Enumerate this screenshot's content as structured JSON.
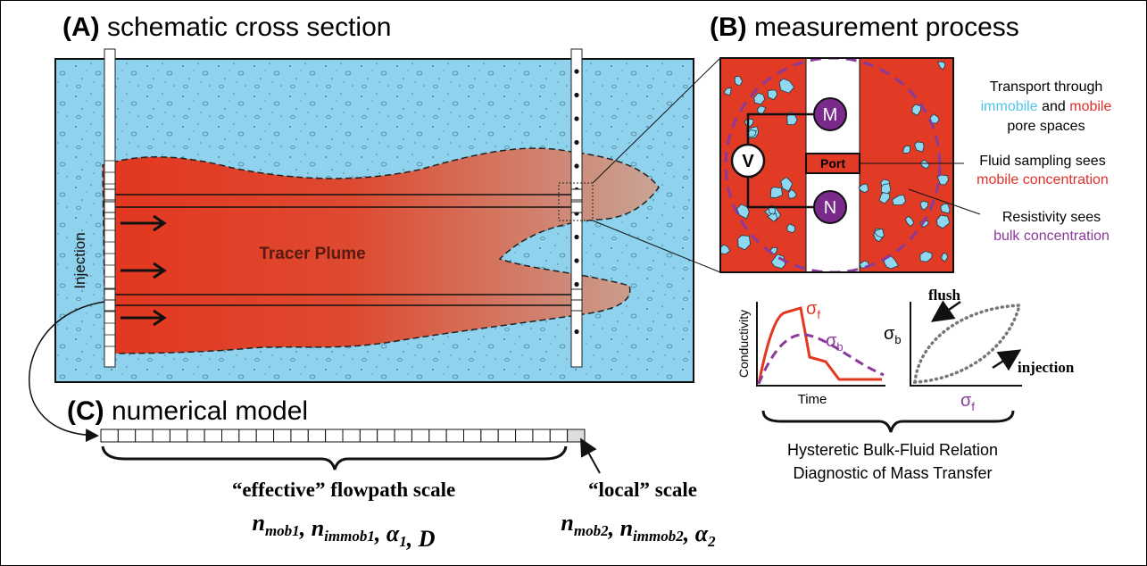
{
  "panel_a": {
    "label": "(A)",
    "title": "schematic cross section",
    "injection": "Injection",
    "plume": "Tracer Plume"
  },
  "panel_b": {
    "label": "(B)",
    "title": "measurement process",
    "nodes": {
      "v": "V",
      "m": "M",
      "n": "N",
      "port": "Port"
    },
    "transport": {
      "line1": "Transport through",
      "immobile": "immobile",
      "and": "and",
      "mobile": "mobile",
      "line3": "pore spaces"
    },
    "sampling": {
      "line1": "Fluid sampling sees",
      "line2": "mobile concentration"
    },
    "resistivity": {
      "line1": "Resistivity sees",
      "line2": "bulk concentration"
    },
    "time_plot": {
      "y_label": "Conductivity",
      "x_label": "Time",
      "fluid": {
        "symbol": "σ",
        "sub": "f"
      },
      "bulk": {
        "symbol": "σ",
        "sub": "b"
      }
    },
    "hysteresis_plot": {
      "flush": "flush",
      "injection": "injection",
      "y_label": {
        "symbol": "σ",
        "sub": "b"
      },
      "x_label": {
        "symbol": "σ",
        "sub": "f"
      }
    },
    "caption": [
      "Hysteretic Bulk-Fluid Relation",
      "Diagnostic of Mass Transfer"
    ]
  },
  "panel_c": {
    "label": "(C)",
    "title": "numerical model",
    "separator": ", ",
    "effective": {
      "title": "“effective” flowpath scale",
      "params": [
        {
          "base": "n",
          "sub": "mob1"
        },
        {
          "base": "n",
          "sub": "immob1"
        },
        {
          "base": "α",
          "sub": "1"
        },
        {
          "base": "D"
        }
      ]
    },
    "local": {
      "title": "“local” scale",
      "params": [
        {
          "base": "n",
          "sub": "mob2"
        },
        {
          "base": "n",
          "sub": "immob2"
        },
        {
          "base": "α",
          "sub": "2"
        }
      ]
    }
  }
}
